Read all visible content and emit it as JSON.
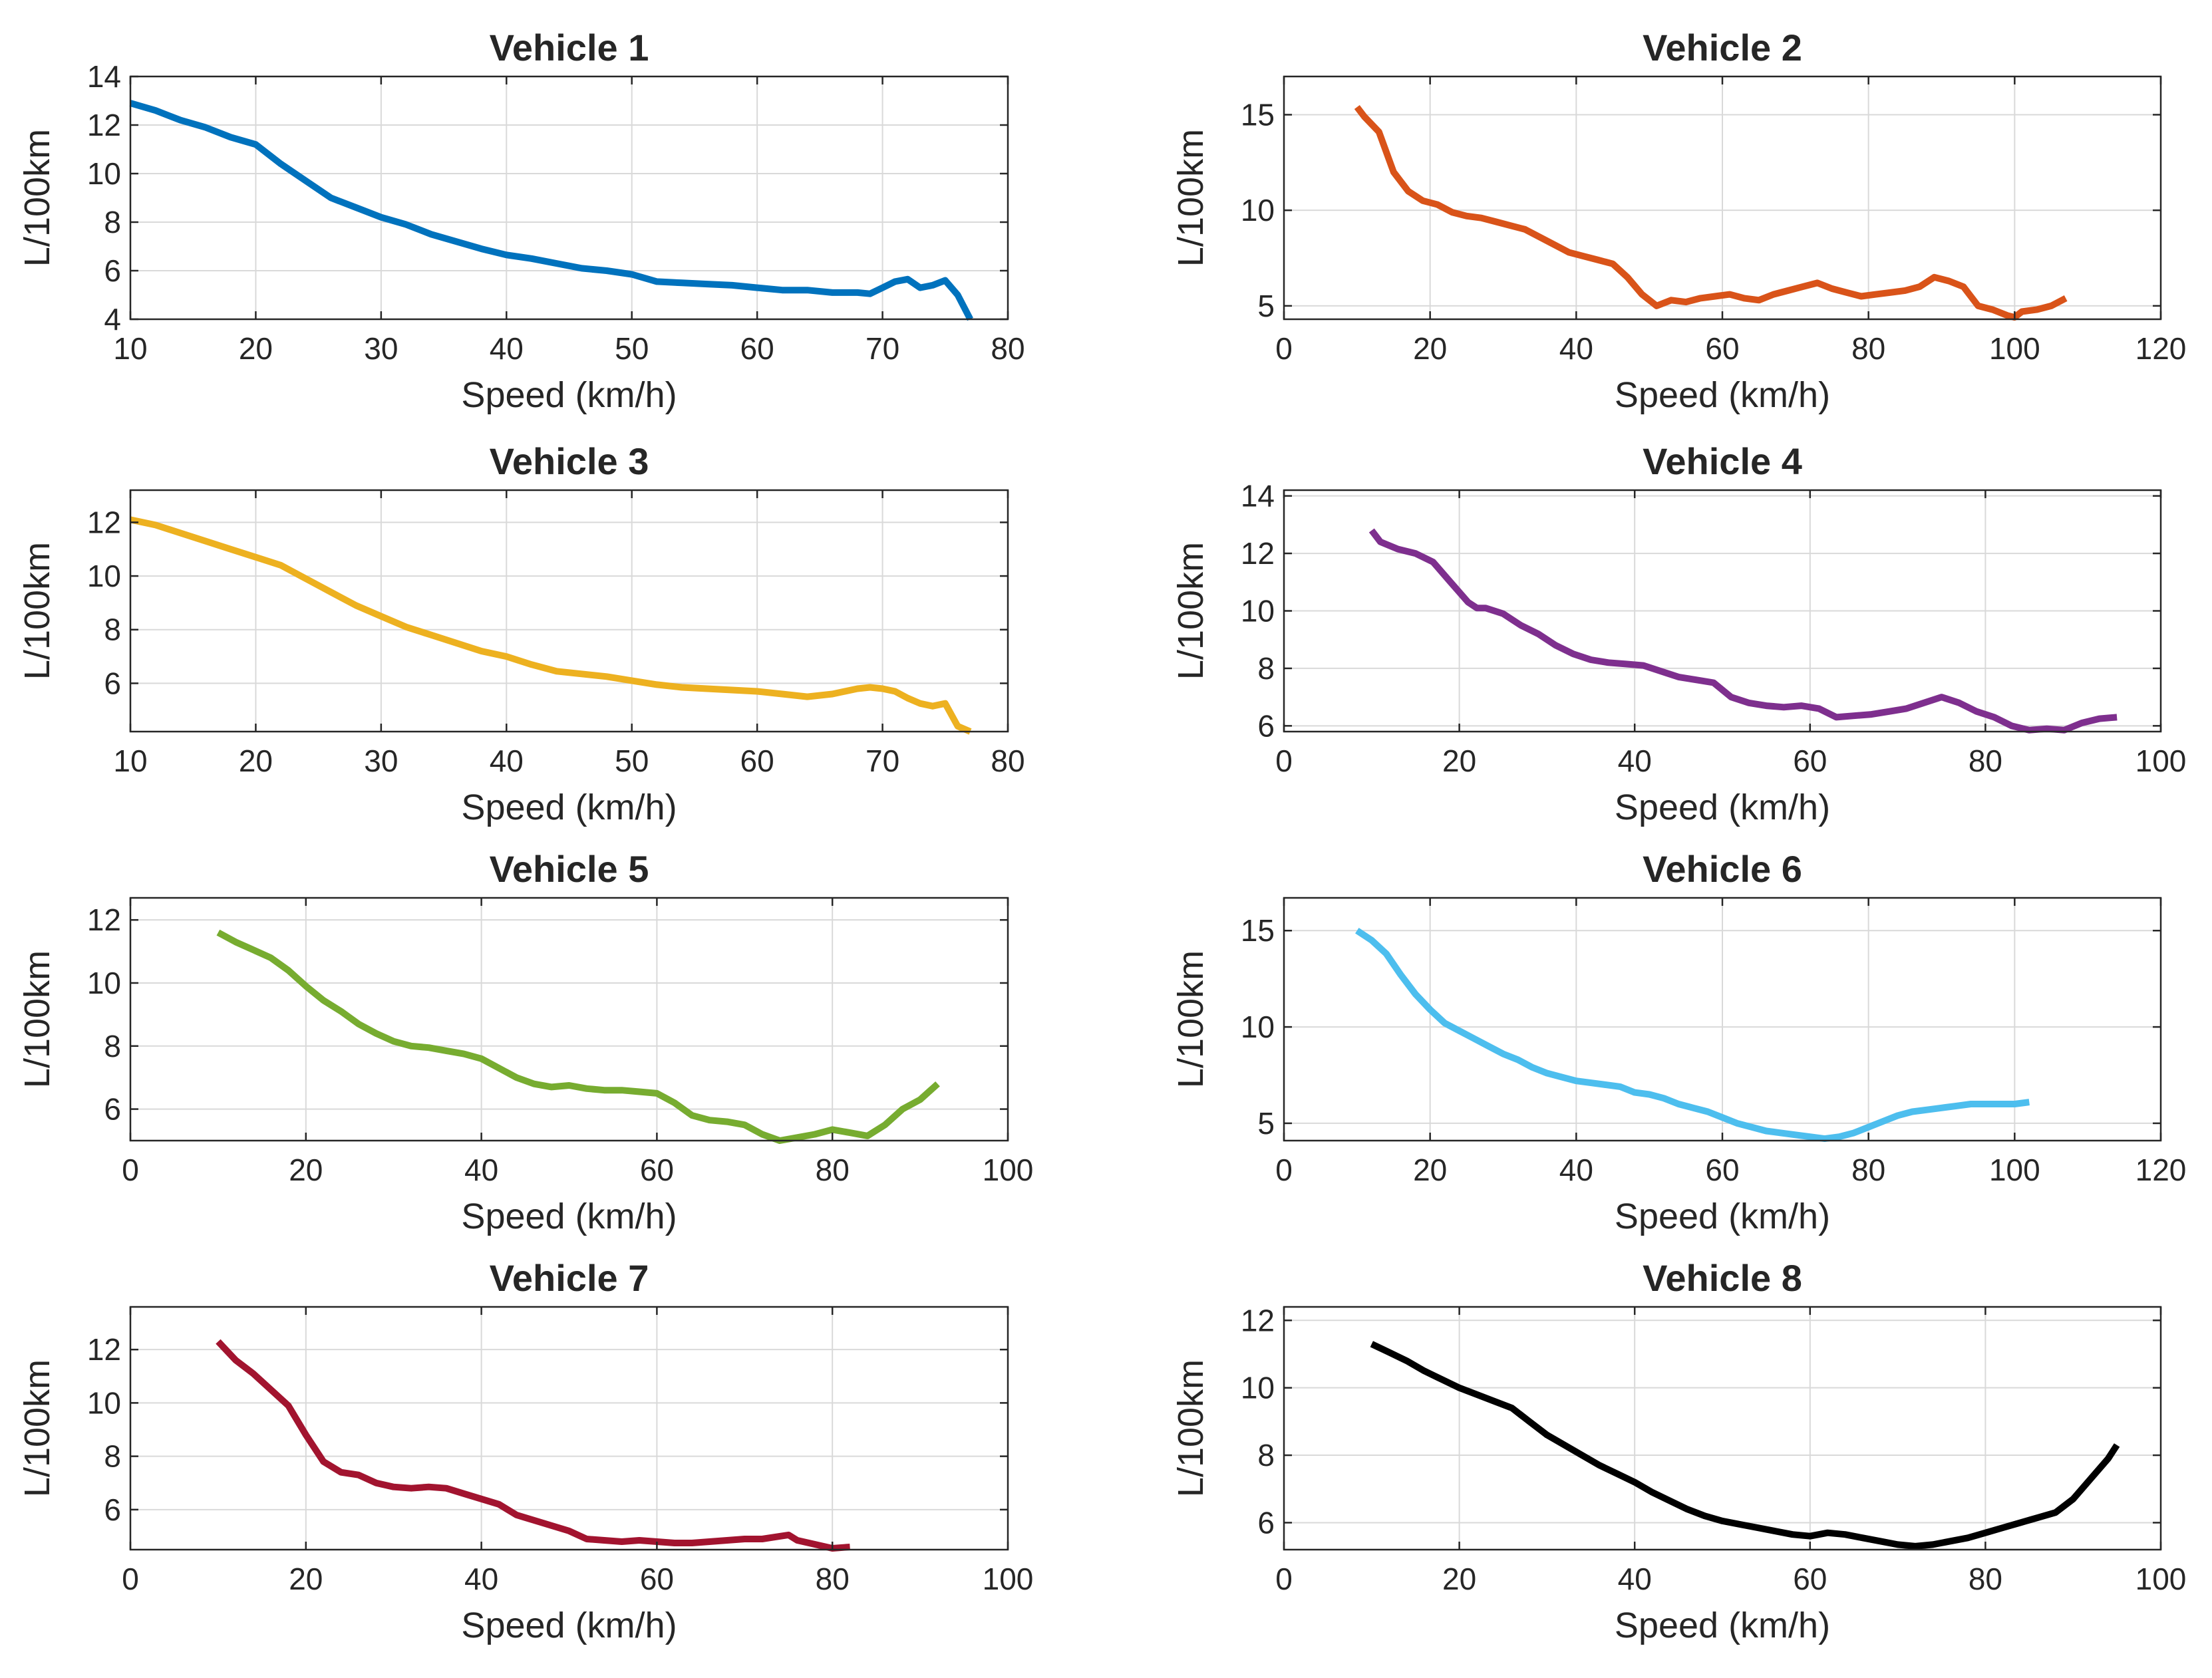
{
  "chart_data": [
    {
      "type": "line",
      "title": "Vehicle 1",
      "xlabel": "Speed (km/h)",
      "ylabel": "L/100km",
      "xlim": [
        10,
        80
      ],
      "ylim": [
        4,
        14
      ],
      "xticks": [
        10,
        20,
        30,
        40,
        50,
        60,
        70,
        80
      ],
      "yticks": [
        4,
        6,
        8,
        10,
        12,
        14
      ],
      "color": "#0072BD",
      "grid": true,
      "series": [
        {
          "name": "Vehicle 1",
          "x": [
            10,
            12,
            14,
            16,
            18,
            20,
            22,
            24,
            26,
            28,
            30,
            32,
            34,
            36,
            38,
            40,
            42,
            44,
            46,
            48,
            50,
            52,
            54,
            56,
            58,
            60,
            62,
            64,
            66,
            68,
            69,
            70,
            71,
            72,
            73,
            74,
            75,
            76,
            77
          ],
          "y": [
            12.9,
            12.6,
            12.2,
            11.9,
            11.5,
            11.2,
            10.4,
            9.7,
            9.0,
            8.6,
            8.2,
            7.9,
            7.5,
            7.2,
            6.9,
            6.65,
            6.5,
            6.3,
            6.1,
            6.0,
            5.85,
            5.55,
            5.5,
            5.45,
            5.4,
            5.3,
            5.2,
            5.2,
            5.1,
            5.1,
            5.05,
            5.3,
            5.55,
            5.65,
            5.3,
            5.4,
            5.6,
            5.0,
            4.0
          ]
        }
      ]
    },
    {
      "type": "line",
      "title": "Vehicle 2",
      "xlabel": "Speed (km/h)",
      "ylabel": "L/100km",
      "xlim": [
        0,
        120
      ],
      "ylim": [
        4.3,
        17
      ],
      "xticks": [
        0,
        20,
        40,
        60,
        80,
        100,
        120
      ],
      "yticks": [
        5,
        10,
        15
      ],
      "color": "#D95319",
      "grid": true,
      "series": [
        {
          "name": "Vehicle 2",
          "x": [
            10,
            11,
            13,
            15,
            17,
            19,
            21,
            23,
            25,
            27,
            29,
            31,
            33,
            35,
            37,
            39,
            41,
            43,
            45,
            47,
            49,
            51,
            53,
            55,
            57,
            59,
            61,
            63,
            65,
            67,
            69,
            71,
            73,
            75,
            77,
            79,
            81,
            83,
            85,
            87,
            89,
            91,
            93,
            95,
            97,
            99,
            100,
            101,
            103,
            105,
            107
          ],
          "y": [
            15.4,
            14.9,
            14.1,
            12.0,
            11.0,
            10.5,
            10.3,
            9.9,
            9.7,
            9.6,
            9.4,
            9.2,
            9.0,
            8.6,
            8.2,
            7.8,
            7.6,
            7.4,
            7.2,
            6.5,
            5.6,
            5.0,
            5.3,
            5.2,
            5.4,
            5.5,
            5.6,
            5.4,
            5.3,
            5.6,
            5.8,
            6.0,
            6.2,
            5.9,
            5.7,
            5.5,
            5.6,
            5.7,
            5.8,
            6.0,
            6.5,
            6.3,
            6.0,
            5.0,
            4.8,
            4.5,
            4.4,
            4.7,
            4.8,
            5.0,
            5.4
          ]
        }
      ]
    },
    {
      "type": "line",
      "title": "Vehicle 3",
      "xlabel": "Speed (km/h)",
      "ylabel": "L/100km",
      "xlim": [
        10,
        80
      ],
      "ylim": [
        4.2,
        13.2
      ],
      "xticks": [
        10,
        20,
        30,
        40,
        50,
        60,
        70,
        80
      ],
      "yticks": [
        6,
        8,
        10,
        12
      ],
      "color": "#EDB120",
      "grid": true,
      "series": [
        {
          "name": "Vehicle 3",
          "x": [
            10,
            12,
            14,
            16,
            18,
            20,
            22,
            24,
            26,
            28,
            30,
            32,
            34,
            36,
            38,
            40,
            42,
            44,
            46,
            48,
            50,
            52,
            54,
            56,
            58,
            60,
            62,
            64,
            66,
            68,
            69,
            70,
            71,
            72,
            73,
            74,
            75,
            76,
            77
          ],
          "y": [
            12.1,
            11.9,
            11.6,
            11.3,
            11.0,
            10.7,
            10.4,
            9.9,
            9.4,
            8.9,
            8.5,
            8.1,
            7.8,
            7.5,
            7.2,
            7.0,
            6.7,
            6.45,
            6.35,
            6.25,
            6.1,
            5.95,
            5.85,
            5.8,
            5.75,
            5.7,
            5.6,
            5.5,
            5.6,
            5.8,
            5.85,
            5.8,
            5.7,
            5.45,
            5.25,
            5.15,
            5.25,
            4.4,
            4.2
          ]
        }
      ]
    },
    {
      "type": "line",
      "title": "Vehicle 4",
      "xlabel": "Speed (km/h)",
      "ylabel": "L/100km",
      "xlim": [
        0,
        100
      ],
      "ylim": [
        5.8,
        14.2
      ],
      "xticks": [
        0,
        20,
        40,
        60,
        80,
        100
      ],
      "yticks": [
        6,
        8,
        10,
        12,
        14
      ],
      "color": "#7E2F8E",
      "grid": true,
      "series": [
        {
          "name": "Vehicle 4",
          "x": [
            10,
            11,
            13,
            15,
            17,
            19,
            21,
            22,
            23,
            25,
            27,
            29,
            31,
            33,
            35,
            37,
            39,
            41,
            43,
            45,
            47,
            49,
            51,
            53,
            55,
            57,
            59,
            61,
            63,
            65,
            67,
            69,
            71,
            73,
            75,
            77,
            79,
            81,
            83,
            85,
            87,
            89,
            91,
            93,
            95
          ],
          "y": [
            12.8,
            12.4,
            12.15,
            12.0,
            11.7,
            11.0,
            10.3,
            10.1,
            10.1,
            9.9,
            9.5,
            9.2,
            8.8,
            8.5,
            8.3,
            8.2,
            8.15,
            8.1,
            7.9,
            7.7,
            7.6,
            7.5,
            7.0,
            6.8,
            6.7,
            6.65,
            6.7,
            6.6,
            6.3,
            6.35,
            6.4,
            6.5,
            6.6,
            6.8,
            7.0,
            6.8,
            6.5,
            6.3,
            6.0,
            5.85,
            5.9,
            5.85,
            6.1,
            6.25,
            6.3
          ]
        }
      ]
    },
    {
      "type": "line",
      "title": "Vehicle 5",
      "xlabel": "Speed (km/h)",
      "ylabel": "L/100km",
      "xlim": [
        0,
        100
      ],
      "ylim": [
        5,
        12.7
      ],
      "xticks": [
        0,
        20,
        40,
        60,
        80,
        100
      ],
      "yticks": [
        6,
        8,
        10,
        12
      ],
      "color": "#77AC30",
      "grid": true,
      "series": [
        {
          "name": "Vehicle 5",
          "x": [
            10,
            12,
            14,
            16,
            18,
            20,
            22,
            24,
            26,
            28,
            30,
            32,
            34,
            36,
            38,
            40,
            42,
            44,
            46,
            48,
            50,
            52,
            54,
            56,
            58,
            60,
            62,
            64,
            66,
            68,
            70,
            72,
            74,
            76,
            78,
            80,
            82,
            84,
            86,
            88,
            90,
            92
          ],
          "y": [
            11.6,
            11.3,
            11.05,
            10.8,
            10.4,
            9.9,
            9.45,
            9.1,
            8.7,
            8.4,
            8.15,
            8.0,
            7.95,
            7.85,
            7.75,
            7.6,
            7.3,
            7.0,
            6.8,
            6.7,
            6.75,
            6.65,
            6.6,
            6.6,
            6.55,
            6.5,
            6.2,
            5.8,
            5.65,
            5.6,
            5.5,
            5.2,
            5.0,
            5.1,
            5.2,
            5.35,
            5.25,
            5.15,
            5.5,
            6.0,
            6.3,
            6.8
          ]
        }
      ]
    },
    {
      "type": "line",
      "title": "Vehicle 6",
      "xlabel": "Speed (km/h)",
      "ylabel": "L/100km",
      "xlim": [
        0,
        120
      ],
      "ylim": [
        4.1,
        16.7
      ],
      "xticks": [
        0,
        20,
        40,
        60,
        80,
        100,
        120
      ],
      "yticks": [
        5,
        10,
        15
      ],
      "color": "#4DBEEE",
      "grid": true,
      "series": [
        {
          "name": "Vehicle 6",
          "x": [
            10,
            12,
            14,
            16,
            18,
            20,
            22,
            24,
            26,
            28,
            30,
            32,
            34,
            36,
            38,
            40,
            42,
            44,
            46,
            48,
            50,
            52,
            54,
            56,
            58,
            60,
            62,
            64,
            66,
            68,
            70,
            72,
            74,
            76,
            78,
            80,
            82,
            84,
            86,
            88,
            90,
            92,
            94,
            96,
            98,
            100,
            102
          ],
          "y": [
            15.0,
            14.5,
            13.8,
            12.7,
            11.7,
            10.9,
            10.2,
            9.8,
            9.4,
            9.0,
            8.6,
            8.3,
            7.9,
            7.6,
            7.4,
            7.2,
            7.1,
            7.0,
            6.9,
            6.6,
            6.5,
            6.3,
            6.0,
            5.8,
            5.6,
            5.3,
            5.0,
            4.8,
            4.6,
            4.5,
            4.4,
            4.3,
            4.2,
            4.3,
            4.5,
            4.8,
            5.1,
            5.4,
            5.6,
            5.7,
            5.8,
            5.9,
            6.0,
            6.0,
            6.0,
            6.0,
            6.1
          ]
        }
      ]
    },
    {
      "type": "line",
      "title": "Vehicle 7",
      "xlabel": "Speed (km/h)",
      "ylabel": "L/100km",
      "xlim": [
        0,
        100
      ],
      "ylim": [
        4.5,
        13.6
      ],
      "xticks": [
        0,
        20,
        40,
        60,
        80,
        100
      ],
      "yticks": [
        6,
        8,
        10,
        12
      ],
      "color": "#A2142F",
      "grid": true,
      "series": [
        {
          "name": "Vehicle 7",
          "x": [
            10,
            12,
            14,
            16,
            18,
            20,
            22,
            24,
            26,
            28,
            30,
            32,
            34,
            36,
            38,
            40,
            42,
            44,
            46,
            48,
            50,
            52,
            54,
            56,
            58,
            60,
            62,
            64,
            66,
            68,
            70,
            72,
            74,
            75,
            76,
            78,
            80,
            82
          ],
          "y": [
            12.3,
            11.6,
            11.1,
            10.5,
            9.9,
            8.8,
            7.8,
            7.4,
            7.3,
            7.0,
            6.85,
            6.8,
            6.85,
            6.8,
            6.6,
            6.4,
            6.2,
            5.8,
            5.6,
            5.4,
            5.2,
            4.9,
            4.85,
            4.8,
            4.85,
            4.8,
            4.75,
            4.75,
            4.8,
            4.85,
            4.9,
            4.9,
            5.0,
            5.05,
            4.85,
            4.7,
            4.55,
            4.6
          ]
        }
      ]
    },
    {
      "type": "line",
      "title": "Vehicle 8",
      "xlabel": "Speed (km/h)",
      "ylabel": "L/100km",
      "xlim": [
        0,
        100
      ],
      "ylim": [
        5.2,
        12.4
      ],
      "xticks": [
        0,
        20,
        40,
        60,
        80,
        100
      ],
      "yticks": [
        6,
        8,
        10,
        12
      ],
      "color": "#000000",
      "grid": true,
      "series": [
        {
          "name": "Vehicle 8",
          "x": [
            10,
            12,
            14,
            16,
            18,
            20,
            22,
            24,
            26,
            28,
            30,
            32,
            34,
            36,
            38,
            40,
            42,
            44,
            46,
            48,
            50,
            52,
            54,
            56,
            58,
            60,
            62,
            64,
            66,
            68,
            70,
            72,
            74,
            76,
            78,
            80,
            82,
            84,
            86,
            88,
            90,
            92,
            94,
            95
          ],
          "y": [
            11.3,
            11.05,
            10.8,
            10.5,
            10.25,
            10.0,
            9.8,
            9.6,
            9.4,
            9.0,
            8.6,
            8.3,
            8.0,
            7.7,
            7.45,
            7.2,
            6.9,
            6.65,
            6.4,
            6.2,
            6.05,
            5.95,
            5.85,
            5.75,
            5.65,
            5.6,
            5.7,
            5.65,
            5.55,
            5.45,
            5.35,
            5.3,
            5.35,
            5.45,
            5.55,
            5.7,
            5.85,
            6.0,
            6.15,
            6.3,
            6.7,
            7.3,
            7.9,
            8.3
          ]
        }
      ]
    }
  ]
}
